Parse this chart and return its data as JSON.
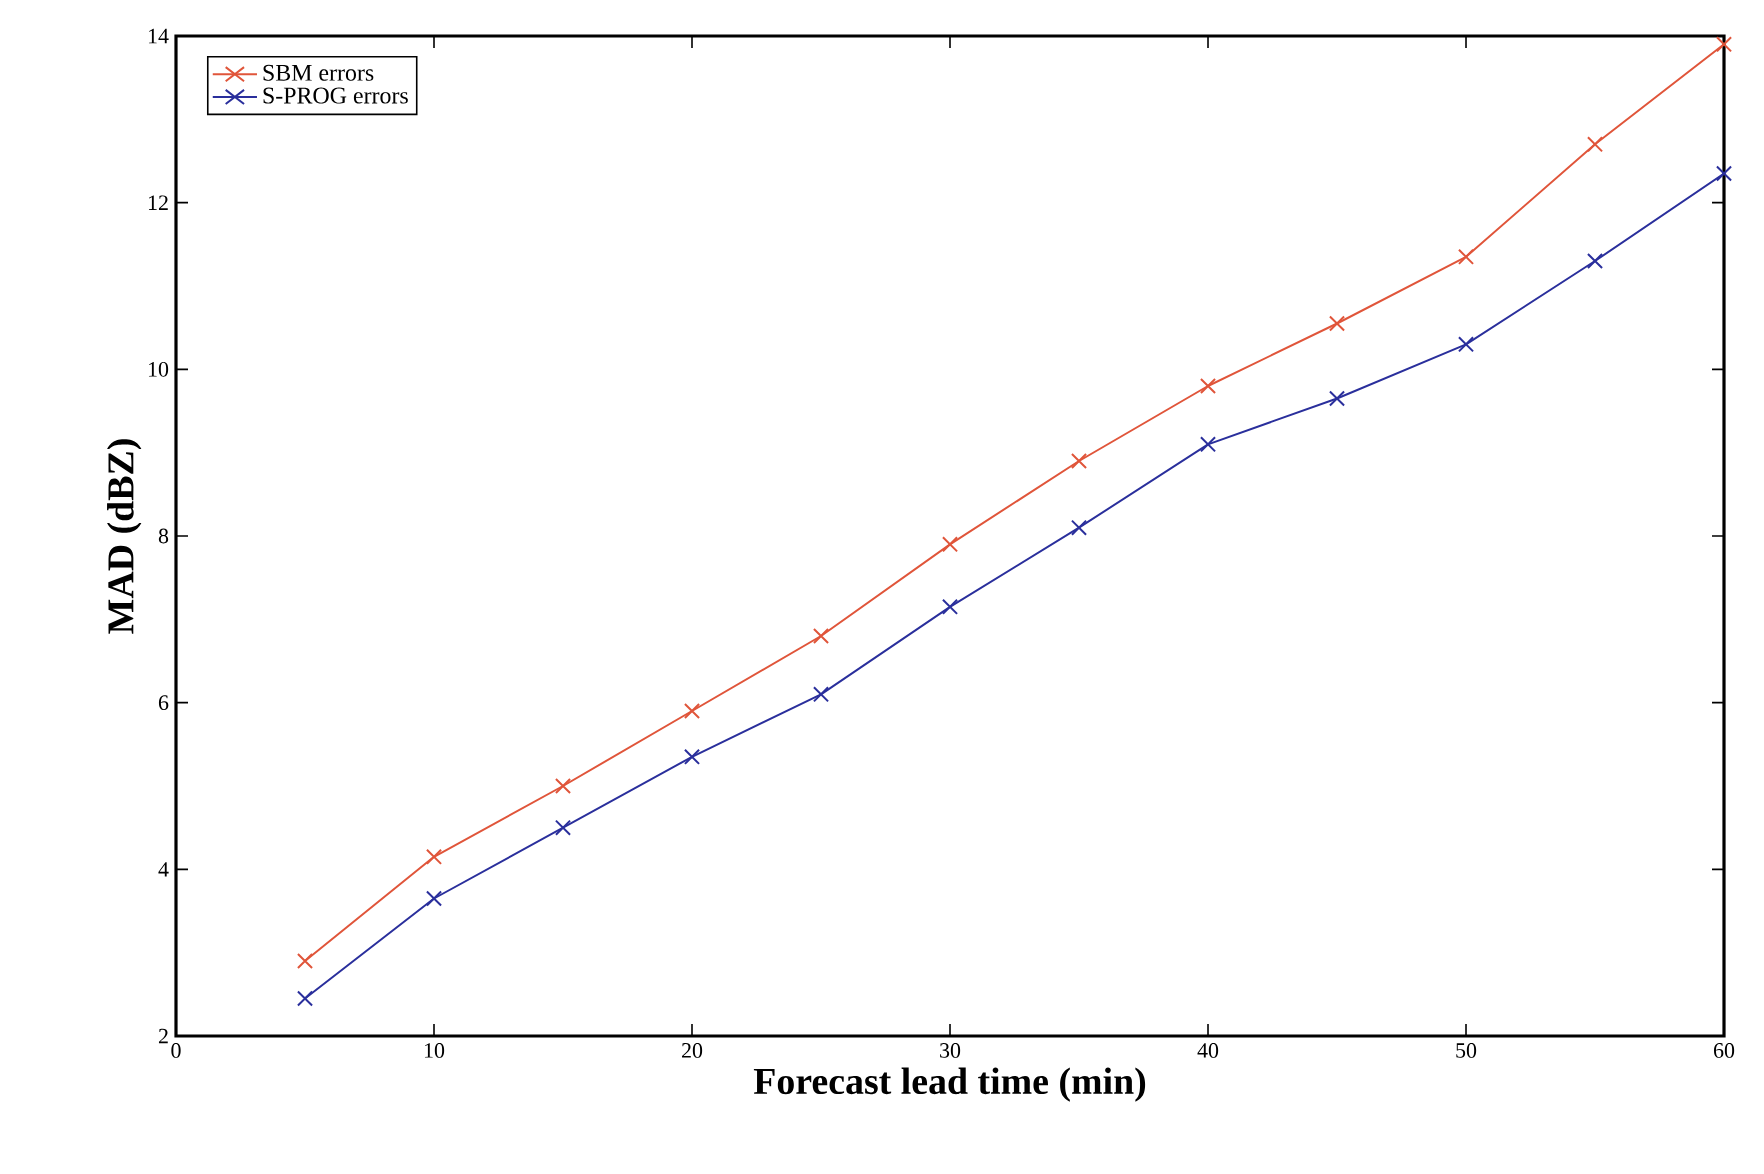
{
  "chart_data": {
    "type": "line",
    "xlabel": "Forecast lead time (min)",
    "ylabel": "MAD (dBZ)",
    "x": [
      5,
      10,
      15,
      20,
      25,
      30,
      35,
      40,
      45,
      50,
      55,
      60
    ],
    "series": [
      {
        "name": "SBM errors",
        "color": "#e0553a",
        "values": [
          2.9,
          4.15,
          5.0,
          5.9,
          6.8,
          7.9,
          8.9,
          9.8,
          10.55,
          11.35,
          12.7,
          13.9
        ]
      },
      {
        "name": "S-PROG errors",
        "color": "#2a2f9c",
        "values": [
          2.45,
          3.65,
          4.5,
          5.35,
          6.1,
          7.15,
          8.1,
          9.1,
          9.65,
          10.3,
          11.3,
          12.35
        ]
      }
    ],
    "xlim": [
      0,
      60
    ],
    "xticks": [
      0,
      10,
      20,
      30,
      40,
      50,
      60
    ],
    "ylim": [
      2,
      14
    ],
    "yticks": [
      2,
      4,
      6,
      8,
      10,
      12,
      14
    ],
    "legend": "top left",
    "marker": "cross",
    "line_style": "solid",
    "grid": false
  }
}
